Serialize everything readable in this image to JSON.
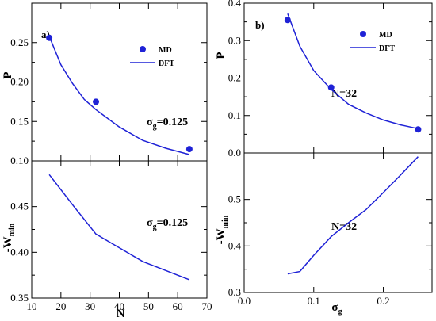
{
  "colors": {
    "series": "#1f22d6",
    "axis": "#000000"
  },
  "legend": {
    "md": "MD",
    "dft": "DFT"
  },
  "chart_data": [
    {
      "panel": "top-left",
      "type": "scatter+line",
      "tag": "a)",
      "ylabel": "P",
      "xlabel": "",
      "annotation": {
        "main": "σ",
        "sub": "g",
        "rest": "=0.125"
      },
      "xlim": [
        10,
        70
      ],
      "ylim": [
        0.1,
        0.3
      ],
      "xticks": [],
      "yticks": [
        0.1,
        0.15,
        0.2,
        0.25
      ],
      "ytick_labels": [
        "0.10",
        "0.15",
        "0.20",
        "0.25"
      ],
      "legend_position": "top-right",
      "series": [
        {
          "name": "MD",
          "kind": "scatter",
          "x": [
            16,
            32,
            64
          ],
          "y": [
            0.256,
            0.175,
            0.115
          ]
        },
        {
          "name": "DFT",
          "kind": "line",
          "x": [
            16,
            20,
            24,
            28,
            32,
            40,
            48,
            56,
            64
          ],
          "y": [
            0.258,
            0.222,
            0.198,
            0.178,
            0.165,
            0.143,
            0.126,
            0.116,
            0.108
          ]
        }
      ]
    },
    {
      "panel": "bottom-left",
      "type": "line",
      "tag": "",
      "ylabel_main": "-W",
      "ylabel_sub": "min",
      "xlabel": "N",
      "annotation": {
        "main": "σ",
        "sub": "g",
        "rest": "=0.125"
      },
      "xlim": [
        10,
        70
      ],
      "ylim": [
        0.35,
        0.5
      ],
      "xticks": [
        10,
        20,
        30,
        40,
        50,
        60,
        70
      ],
      "xtick_labels": [
        "10",
        "20",
        "30",
        "40",
        "50",
        "60",
        "70"
      ],
      "yticks": [
        0.35,
        0.4,
        0.45
      ],
      "ytick_labels": [
        "0.35",
        "0.40",
        "0.45"
      ],
      "series": [
        {
          "name": "",
          "kind": "line",
          "x": [
            16,
            24,
            32,
            40,
            48,
            56,
            64
          ],
          "y": [
            0.485,
            0.452,
            0.42,
            0.405,
            0.39,
            0.38,
            0.37
          ]
        }
      ]
    },
    {
      "panel": "top-right",
      "type": "scatter+line",
      "tag": "b)",
      "ylabel": "P",
      "xlabel": "",
      "annotation": {
        "main": "N=32",
        "sub": "",
        "rest": ""
      },
      "xlim": [
        0.0,
        0.27
      ],
      "ylim": [
        0.0,
        0.4
      ],
      "xticks": [],
      "yticks": [
        0.0,
        0.1,
        0.2,
        0.3,
        0.4
      ],
      "ytick_labels": [
        "0.0",
        "0.1",
        "0.2",
        "0.3",
        "0.4"
      ],
      "legend_position": "top-right",
      "series": [
        {
          "name": "MD",
          "kind": "scatter",
          "x": [
            0.0625,
            0.125,
            0.25
          ],
          "y": [
            0.355,
            0.175,
            0.063
          ]
        },
        {
          "name": "DFT",
          "kind": "line",
          "x": [
            0.0625,
            0.08,
            0.1,
            0.125,
            0.15,
            0.175,
            0.2,
            0.225,
            0.25
          ],
          "y": [
            0.372,
            0.285,
            0.22,
            0.17,
            0.13,
            0.107,
            0.088,
            0.075,
            0.065
          ]
        }
      ]
    },
    {
      "panel": "bottom-right",
      "type": "line",
      "tag": "",
      "ylabel_main": "-W",
      "ylabel_sub": "min",
      "xlabel_main": "σ",
      "xlabel_sub": "g",
      "annotation": {
        "main": "N=32",
        "sub": "",
        "rest": ""
      },
      "xlim": [
        0.0,
        0.27
      ],
      "ylim": [
        0.3,
        0.6
      ],
      "xticks": [
        0.0,
        0.1,
        0.2
      ],
      "xtick_labels": [
        "0.0",
        "0.1",
        "0.2"
      ],
      "yticks": [
        0.3,
        0.4,
        0.5
      ],
      "ytick_labels": [
        "0.3",
        "0.4",
        "0.5"
      ],
      "series": [
        {
          "name": "",
          "kind": "line",
          "x": [
            0.0625,
            0.08,
            0.1,
            0.125,
            0.15,
            0.175,
            0.2,
            0.225,
            0.25
          ],
          "y": [
            0.34,
            0.345,
            0.38,
            0.42,
            0.45,
            0.478,
            0.515,
            0.553,
            0.592
          ]
        }
      ]
    }
  ]
}
